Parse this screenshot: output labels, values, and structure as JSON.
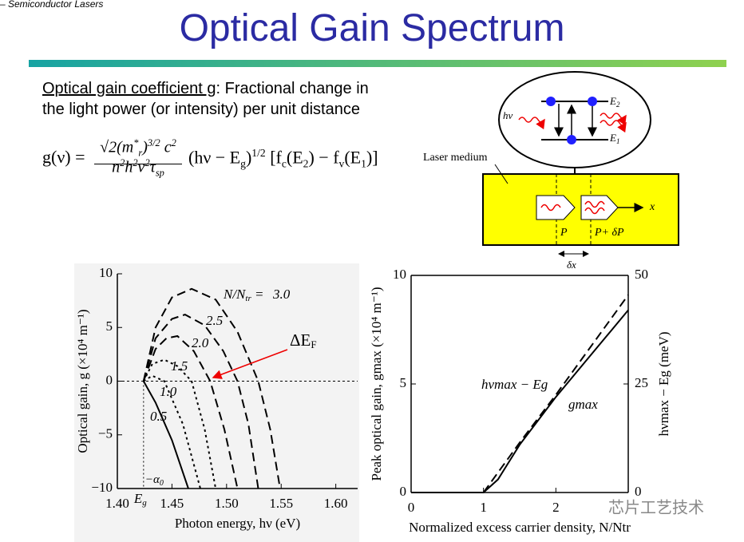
{
  "header": {
    "course": "– Semiconductor Lasers",
    "title": "Optical Gain Spectrum"
  },
  "text": {
    "term": "Optical gain coefficient g",
    "rest": ": Fractional change in",
    "line2": "the light power (or intensity) per unit distance"
  },
  "formula": {
    "lhs": "g(ν) =",
    "numerator": [
      "√2(m",
      "*",
      "r",
      ")",
      "3/2",
      " c",
      "2"
    ],
    "denominator": [
      "n",
      "2",
      "h",
      "2",
      "ν",
      "2",
      "τ",
      "sp"
    ],
    "rest": [
      "(hν − E",
      "g",
      ")",
      "1/2",
      " [f",
      "c",
      "(E",
      "2",
      ") − f",
      "v",
      "(E",
      "1",
      ")]"
    ]
  },
  "diagram": {
    "photon": "hν",
    "upper_level": "E",
    "upper_sub": "2",
    "lower_level": "E",
    "lower_sub": "1",
    "medium": "Laser medium",
    "axis": "x",
    "power_in": "P",
    "power_out": "P+ δP",
    "length": "δx"
  },
  "watermark": "芯片工艺技术",
  "chart_data": [
    {
      "type": "line",
      "frame": "left-bottom",
      "xlabel": "Photon energy, hν (eV)",
      "ylabel": "Optical gain, g (×10⁴ m⁻¹)",
      "xlim": [
        1.4,
        1.62
      ],
      "ylim": [
        -10,
        10
      ],
      "xticks": [
        {
          "value": 1.4,
          "label": "1.40"
        },
        1.45,
        {
          "value": 1.5,
          "label": "1.50"
        },
        1.55,
        {
          "value": 1.6,
          "label": "1.60"
        }
      ],
      "yticks": [
        {
          "value": -10,
          "label": "−10"
        },
        {
          "value": -5,
          "label": "−5"
        },
        0,
        5,
        10
      ],
      "zero_line": true,
      "annotations": {
        "ratio": "N/N",
        "ratio_sub": "tr",
        "ratio_eq": " = ",
        "delta": "ΔE",
        "delta_sub": "F",
        "eg": "E",
        "eg_sub": "g",
        "alpha": "−α",
        "alpha_sub": "0"
      },
      "series": [
        {
          "name": "3.0",
          "color": "#000000",
          "dash": "dashed",
          "x": [
            1.424,
            1.435,
            1.45,
            1.468,
            1.49,
            1.51,
            1.529,
            1.54,
            1.549
          ],
          "values": [
            0,
            5,
            7.8,
            8.6,
            7.6,
            4.6,
            0,
            -4.5,
            -10
          ]
        },
        {
          "name": "2.5",
          "color": "#000000",
          "dash": "dashed",
          "x": [
            1.424,
            1.435,
            1.45,
            1.462,
            1.48,
            1.497,
            1.51,
            1.52,
            1.529
          ],
          "values": [
            0,
            4,
            5.8,
            6.2,
            5.2,
            2.8,
            0,
            -4,
            -10
          ]
        },
        {
          "name": "2.0",
          "color": "#000000",
          "dash": "dashed",
          "x": [
            1.424,
            1.435,
            1.445,
            1.455,
            1.47,
            1.485,
            1.498,
            1.51
          ],
          "values": [
            0,
            3,
            4,
            4.2,
            2.8,
            0,
            -4.5,
            -10
          ]
        },
        {
          "name": "1.5",
          "color": "#000000",
          "dash": "dotted",
          "x": [
            1.424,
            1.432,
            1.443,
            1.455,
            1.468,
            1.48,
            1.49
          ],
          "values": [
            0,
            1.6,
            2,
            1.4,
            0,
            -4.5,
            -10
          ]
        },
        {
          "name": "1.0",
          "color": "#000000",
          "dash": "dotted",
          "x": [
            1.424,
            1.432,
            1.443,
            1.46,
            1.476
          ],
          "values": [
            0,
            0.5,
            0,
            -4,
            -10
          ]
        },
        {
          "name": "0.5",
          "color": "#000000",
          "dash": "solid",
          "x": [
            1.424,
            1.435,
            1.45,
            1.465
          ],
          "values": [
            0,
            -2,
            -5.5,
            -10
          ]
        }
      ]
    },
    {
      "type": "line",
      "frame": "box",
      "xlabel": "Normalized excess carrier density, N/Ntr",
      "ylabel": "Peak optical gain, gmax (×10⁴ m⁻¹)",
      "y2label": "hνmax − Eg (meV)",
      "xlim": [
        0,
        3
      ],
      "ylim": [
        0,
        10
      ],
      "y2lim": [
        0,
        50
      ],
      "xticks": [
        0,
        1,
        2
      ],
      "yticks": [
        0,
        5,
        10
      ],
      "y2ticks": [
        0,
        25,
        50
      ],
      "series": [
        {
          "name": "hνmax − Eg",
          "color": "#000000",
          "dash": "dashed",
          "axis": "y2",
          "x": [
            1,
            1.5,
            2,
            2.5,
            3
          ],
          "values": [
            0,
            11.5,
            22.5,
            34,
            45.5
          ]
        },
        {
          "name": "gmax",
          "color": "#000000",
          "dash": "solid",
          "x": [
            0,
            1,
            1.2,
            1.5,
            2,
            2.5,
            3
          ],
          "values": [
            0,
            0,
            0.6,
            2.2,
            4.4,
            6.4,
            8.4
          ]
        }
      ]
    }
  ]
}
